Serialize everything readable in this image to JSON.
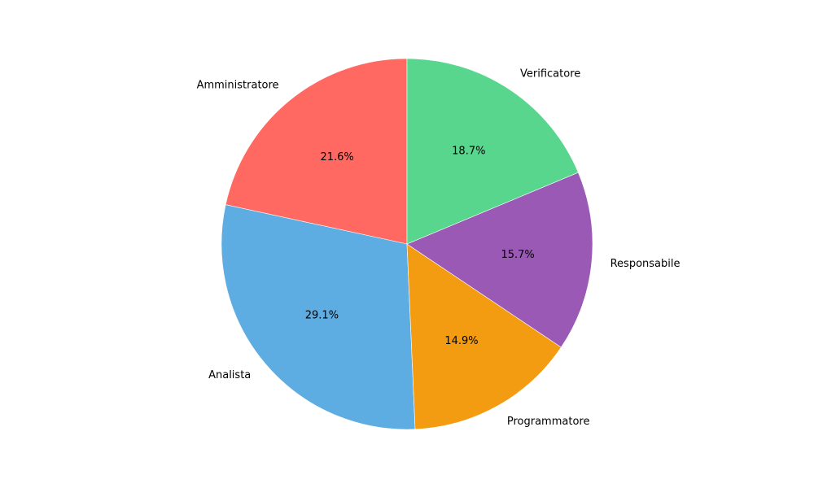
{
  "chart_data": {
    "type": "pie",
    "title": "",
    "start_angle_deg": 90,
    "direction": "counterclockwise",
    "slices": [
      {
        "label": "Amministratore",
        "value": 21.6,
        "pct_label": "21.6%",
        "color": "#ff6961"
      },
      {
        "label": "Analista",
        "value": 29.1,
        "pct_label": "29.1%",
        "color": "#5dade2"
      },
      {
        "label": "Programmatore",
        "value": 14.9,
        "pct_label": "14.9%",
        "color": "#f39c12"
      },
      {
        "label": "Responsabile",
        "value": 15.7,
        "pct_label": "15.7%",
        "color": "#9b59b6"
      },
      {
        "label": "Verificatore",
        "value": 18.7,
        "pct_label": "18.7%",
        "color": "#58d68d"
      }
    ]
  }
}
